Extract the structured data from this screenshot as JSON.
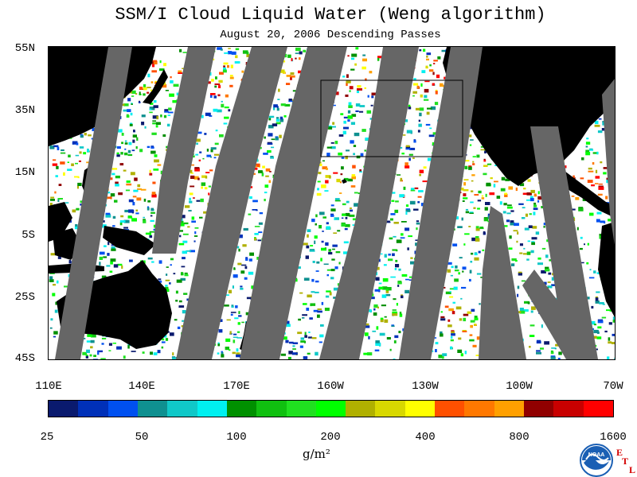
{
  "title": "SSM/I Cloud Liquid Water (Weng algorithm)",
  "subtitle": "August 20, 2006  Descending Passes",
  "lat_labels": [
    "55N",
    "35N",
    "15N",
    "5S",
    "25S",
    "45S"
  ],
  "lon_labels": [
    "110E",
    "140E",
    "170E",
    "160W",
    "130W",
    "100W",
    "70W"
  ],
  "colorbar": {
    "colors": [
      "#0a1a6e",
      "#0030b8",
      "#0050f0",
      "#0f9090",
      "#10c8c8",
      "#00f0f0",
      "#009000",
      "#10c010",
      "#20e020",
      "#00ff00",
      "#b0b000",
      "#d8d800",
      "#ffff00",
      "#ff5000",
      "#ff7800",
      "#ffa000",
      "#900000",
      "#c80000",
      "#ff0000"
    ],
    "labels": [
      "25",
      "50",
      "100",
      "200",
      "400",
      "800",
      "1600"
    ]
  },
  "units": "g/m²",
  "logo": {
    "icon": "noaa-logo-icon",
    "text": "NOAA",
    "etl_letters": [
      "E",
      "T",
      "L"
    ]
  }
}
